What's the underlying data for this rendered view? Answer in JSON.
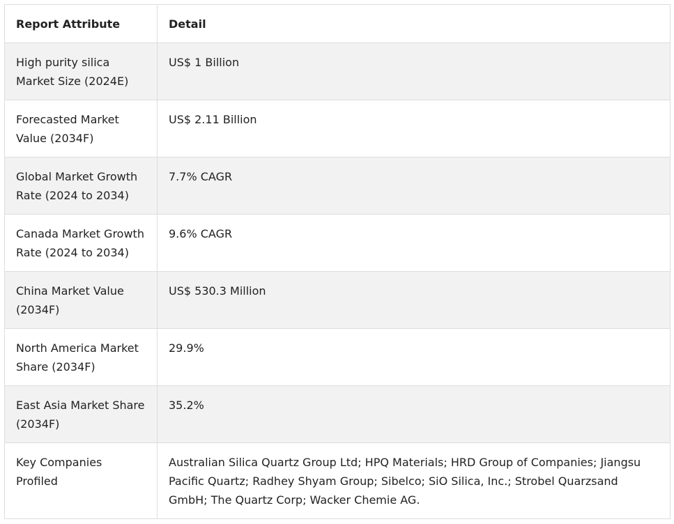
{
  "table": {
    "headers": [
      "Report Attribute",
      "Detail"
    ],
    "rows": [
      {
        "attribute": "High purity silica Market Size (2024E)",
        "detail": "US$ 1 Billion"
      },
      {
        "attribute": "Forecasted Market Value (2034F)",
        "detail": "US$ 2.11 Billion"
      },
      {
        "attribute": "Global Market Growth Rate (2024 to 2034)",
        "detail": "7.7% CAGR"
      },
      {
        "attribute": "Canada Market Growth Rate (2024 to 2034)",
        "detail": "9.6% CAGR"
      },
      {
        "attribute": "China Market Value (2034F)",
        "detail": "US$ 530.3 Million"
      },
      {
        "attribute": "North America Market Share (2034F)",
        "detail": "29.9%"
      },
      {
        "attribute": "East Asia Market Share (2034F)",
        "detail": "35.2%"
      },
      {
        "attribute": "Key Companies Profiled",
        "detail": "Australian Silica Quartz Group Ltd; HPQ Materials; HRD Group of Companies; Jiangsu Pacific Quartz; Radhey Shyam Group; Sibelco; SiO Silica, Inc.; Strobel Quarzsand GmbH; The Quartz Corp; Wacker Chemie AG."
      }
    ]
  }
}
